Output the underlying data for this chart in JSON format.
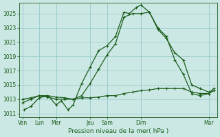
{
  "xlabel": "Pression niveau de la mer( hPa )",
  "bg_color": "#cce8e4",
  "grid_color": "#99cccc",
  "line_color": "#1a5c1a",
  "ylim": [
    1010.5,
    1026.5
  ],
  "yticks": [
    1011,
    1013,
    1015,
    1017,
    1019,
    1021,
    1023,
    1025
  ],
  "day_positions": [
    0,
    1,
    2,
    4,
    5,
    7,
    11
  ],
  "day_labels": [
    "Ven",
    "Lun",
    "Mer",
    "Jeu",
    "Sam",
    "Dim",
    "Mar"
  ],
  "xlim": [
    -0.2,
    11.5
  ],
  "series1_x": [
    0.1,
    0.5,
    1.0,
    1.5,
    2.0,
    2.3,
    2.7,
    3.0,
    3.5,
    4.0,
    4.5,
    5.0,
    5.5,
    6.0,
    6.3,
    6.7,
    7.0,
    7.5,
    8.0,
    8.5,
    9.0,
    9.5,
    10.0,
    10.5,
    11.0,
    11.3
  ],
  "series1_y": [
    1011.5,
    1012.0,
    1013.2,
    1013.5,
    1012.2,
    1012.8,
    1011.5,
    1012.2,
    1015.2,
    1017.5,
    1019.8,
    1020.5,
    1021.8,
    1025.2,
    1025.0,
    1025.8,
    1026.2,
    1025.2,
    1022.8,
    1021.5,
    1019.5,
    1018.5,
    1015.0,
    1014.5,
    1014.0,
    1014.2
  ],
  "series2_x": [
    0.0,
    0.5,
    1.0,
    1.5,
    2.0,
    2.5,
    3.0,
    3.5,
    4.0,
    4.5,
    5.0,
    5.5,
    6.0,
    6.5,
    7.0,
    7.5,
    8.0,
    8.5,
    9.0,
    9.5,
    10.0,
    10.5,
    11.0,
    11.3
  ],
  "series2_y": [
    1012.5,
    1013.0,
    1013.5,
    1013.5,
    1013.3,
    1013.2,
    1013.0,
    1013.5,
    1015.2,
    1017.2,
    1019.2,
    1020.8,
    1024.5,
    1025.0,
    1025.0,
    1025.2,
    1023.0,
    1021.8,
    1018.5,
    1016.5,
    1013.8,
    1013.5,
    1013.8,
    1014.5
  ],
  "series3_x": [
    0.0,
    0.5,
    1.0,
    1.5,
    2.0,
    2.5,
    3.0,
    3.5,
    4.0,
    4.5,
    5.0,
    5.5,
    6.0,
    6.5,
    7.0,
    7.5,
    8.0,
    8.5,
    9.0,
    9.5,
    10.0,
    10.5,
    11.0,
    11.3
  ],
  "series3_y": [
    1013.0,
    1013.2,
    1013.5,
    1013.3,
    1013.0,
    1013.0,
    1013.0,
    1013.2,
    1013.2,
    1013.3,
    1013.5,
    1013.5,
    1013.8,
    1014.0,
    1014.2,
    1014.3,
    1014.5,
    1014.5,
    1014.5,
    1014.5,
    1014.0,
    1013.8,
    1013.8,
    1014.2
  ]
}
